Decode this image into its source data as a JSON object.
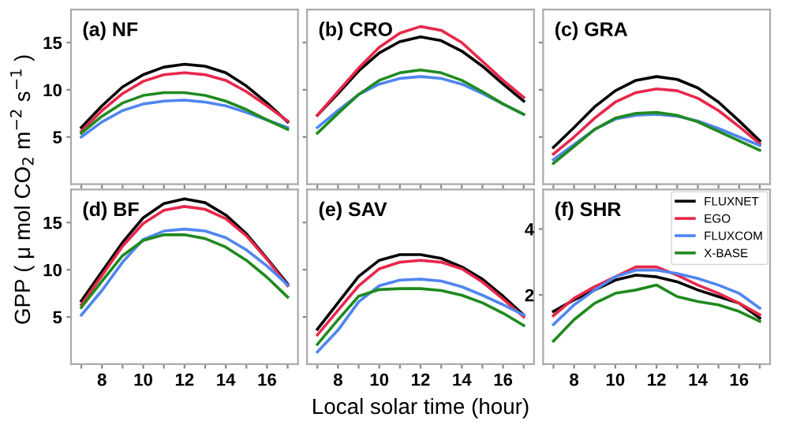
{
  "chart_data": [
    {
      "type": "line",
      "title": "(a) NF",
      "x": [
        7,
        8,
        9,
        10,
        11,
        12,
        13,
        14,
        15,
        16,
        17
      ],
      "xlim": [
        6.5,
        17.5
      ],
      "ylim": [
        0,
        18.5
      ],
      "xticks": [
        {
          "value": 7,
          "label": null
        },
        8,
        {
          "value": 9,
          "label": null
        },
        10,
        {
          "value": 11,
          "label": null
        },
        12,
        {
          "value": 13,
          "label": null
        },
        14,
        {
          "value": 15,
          "label": null
        },
        16,
        {
          "value": 17,
          "label": null
        }
      ],
      "yticks": [
        5,
        10,
        15
      ],
      "tick_labels": "y",
      "grid": false,
      "legend": false,
      "series": [
        {
          "color": "#000000",
          "values": [
            6.0,
            8.3,
            10.3,
            11.6,
            12.4,
            12.7,
            12.5,
            11.8,
            10.4,
            8.6,
            6.6
          ]
        },
        {
          "color": "#e8274b",
          "values": [
            5.6,
            7.8,
            9.6,
            10.9,
            11.6,
            11.8,
            11.6,
            11.0,
            9.8,
            8.3,
            6.7
          ]
        },
        {
          "color": "#4f86f0",
          "values": [
            5.0,
            6.6,
            7.8,
            8.5,
            8.8,
            8.9,
            8.7,
            8.3,
            7.6,
            6.8,
            6.0
          ]
        },
        {
          "color": "#1f8a1f",
          "values": [
            5.4,
            7.2,
            8.6,
            9.4,
            9.7,
            9.7,
            9.4,
            8.8,
            7.9,
            6.8,
            5.8
          ]
        }
      ]
    },
    {
      "type": "line",
      "title": "(b) CRO",
      "x": [
        7,
        8,
        9,
        10,
        11,
        12,
        13,
        14,
        15,
        16,
        17
      ],
      "xlim": [
        6.5,
        17.5
      ],
      "ylim": [
        0,
        18.5
      ],
      "xticks": [
        {
          "value": 7,
          "label": null
        },
        8,
        {
          "value": 9,
          "label": null
        },
        10,
        {
          "value": 11,
          "label": null
        },
        12,
        {
          "value": 13,
          "label": null
        },
        14,
        {
          "value": 15,
          "label": null
        },
        16,
        {
          "value": 17,
          "label": null
        }
      ],
      "yticks": [
        5,
        10,
        15
      ],
      "tick_labels": false,
      "grid": false,
      "legend": false,
      "series": [
        {
          "color": "#000000",
          "values": [
            7.3,
            9.6,
            12.0,
            13.9,
            15.1,
            15.6,
            15.2,
            14.1,
            12.5,
            10.6,
            8.8
          ]
        },
        {
          "color": "#e8274b",
          "values": [
            7.3,
            9.8,
            12.3,
            14.5,
            16.0,
            16.7,
            16.3,
            15.0,
            13.0,
            11.0,
            9.2
          ]
        },
        {
          "color": "#4f86f0",
          "values": [
            6.0,
            7.8,
            9.5,
            10.6,
            11.2,
            11.4,
            11.2,
            10.6,
            9.6,
            8.5,
            7.4
          ]
        },
        {
          "color": "#1f8a1f",
          "values": [
            5.4,
            7.5,
            9.5,
            11.0,
            11.8,
            12.1,
            11.8,
            11.0,
            9.8,
            8.5,
            7.4
          ]
        }
      ]
    },
    {
      "type": "line",
      "title": "(c) GRA",
      "x": [
        7,
        8,
        9,
        10,
        11,
        12,
        13,
        14,
        15,
        16,
        17
      ],
      "xlim": [
        6.5,
        17.5
      ],
      "ylim": [
        0,
        18.5
      ],
      "xticks": [
        {
          "value": 7,
          "label": null
        },
        8,
        {
          "value": 9,
          "label": null
        },
        10,
        {
          "value": 11,
          "label": null
        },
        12,
        {
          "value": 13,
          "label": null
        },
        14,
        {
          "value": 15,
          "label": null
        },
        16,
        {
          "value": 17,
          "label": null
        }
      ],
      "yticks": [
        5,
        10,
        15
      ],
      "tick_labels": false,
      "grid": false,
      "legend": false,
      "series": [
        {
          "color": "#000000",
          "values": [
            3.9,
            6.0,
            8.2,
            9.9,
            11.0,
            11.4,
            11.1,
            10.2,
            8.7,
            6.7,
            4.6
          ]
        },
        {
          "color": "#e8274b",
          "values": [
            3.2,
            5.0,
            7.0,
            8.7,
            9.7,
            10.1,
            9.9,
            9.1,
            7.8,
            6.1,
            4.3
          ]
        },
        {
          "color": "#4f86f0",
          "values": [
            2.6,
            4.2,
            5.8,
            6.9,
            7.3,
            7.4,
            7.2,
            6.7,
            5.9,
            5.0,
            4.1
          ]
        },
        {
          "color": "#1f8a1f",
          "values": [
            2.2,
            4.0,
            5.8,
            7.0,
            7.5,
            7.6,
            7.3,
            6.6,
            5.6,
            4.6,
            3.6
          ]
        }
      ]
    },
    {
      "type": "line",
      "title": "(d) BF",
      "ylabel": "GPP ( μ mol CO$_{2}$ m$^{−2}$ s$^{−1}$ )",
      "x": [
        7,
        8,
        9,
        10,
        11,
        12,
        13,
        14,
        15,
        16,
        17
      ],
      "xlim": [
        6.5,
        17.5
      ],
      "ylim": [
        0,
        18.5
      ],
      "xticks": [
        {
          "value": 7,
          "label": null
        },
        8,
        {
          "value": 9,
          "label": null
        },
        10,
        {
          "value": 11,
          "label": null
        },
        12,
        {
          "value": 13,
          "label": null
        },
        14,
        {
          "value": 15,
          "label": null
        },
        16,
        {
          "value": 17,
          "label": null
        }
      ],
      "yticks": [
        5,
        10,
        15
      ],
      "grid": false,
      "legend": false,
      "series": [
        {
          "color": "#000000",
          "values": [
            6.7,
            9.8,
            12.9,
            15.5,
            17.0,
            17.5,
            17.1,
            15.8,
            13.8,
            11.2,
            8.5
          ]
        },
        {
          "color": "#e8274b",
          "values": [
            6.3,
            9.4,
            12.5,
            14.9,
            16.3,
            16.7,
            16.4,
            15.4,
            13.6,
            11.1,
            8.3
          ]
        },
        {
          "color": "#4f86f0",
          "values": [
            5.2,
            7.8,
            10.8,
            13.2,
            14.1,
            14.3,
            14.1,
            13.4,
            12.1,
            10.4,
            8.4
          ]
        },
        {
          "color": "#1f8a1f",
          "values": [
            6.0,
            8.8,
            11.5,
            13.1,
            13.7,
            13.7,
            13.3,
            12.4,
            11.0,
            9.2,
            7.1
          ]
        }
      ]
    },
    {
      "type": "line",
      "title": "(e) SAV",
      "xlabel": "Local solar time (hour)",
      "x": [
        7,
        8,
        9,
        10,
        11,
        12,
        13,
        14,
        15,
        16,
        17
      ],
      "xlim": [
        6.5,
        17.5
      ],
      "ylim": [
        0,
        18.5
      ],
      "xticks": [
        {
          "value": 7,
          "label": null
        },
        8,
        {
          "value": 9,
          "label": null
        },
        10,
        {
          "value": 11,
          "label": null
        },
        12,
        {
          "value": 13,
          "label": null
        },
        14,
        {
          "value": 15,
          "label": null
        },
        16,
        {
          "value": 17,
          "label": null
        }
      ],
      "yticks": [
        5,
        10,
        15
      ],
      "tick_labels": "x",
      "grid": false,
      "legend": false,
      "series": [
        {
          "color": "#000000",
          "values": [
            3.7,
            6.5,
            9.3,
            11.0,
            11.6,
            11.6,
            11.2,
            10.3,
            9.0,
            7.2,
            5.2
          ]
        },
        {
          "color": "#e8274b",
          "values": [
            3.1,
            5.7,
            8.3,
            10.1,
            10.8,
            11.0,
            10.8,
            10.1,
            8.7,
            6.9,
            5.0
          ]
        },
        {
          "color": "#4f86f0",
          "values": [
            1.3,
            3.6,
            6.6,
            8.3,
            8.9,
            9.0,
            8.8,
            8.2,
            7.3,
            6.3,
            5.2
          ]
        },
        {
          "color": "#1f8a1f",
          "values": [
            2.1,
            4.7,
            7.2,
            7.9,
            8.0,
            8.0,
            7.8,
            7.3,
            6.5,
            5.4,
            4.1
          ]
        }
      ]
    },
    {
      "type": "line",
      "title": "(f) SHR",
      "x": [
        7,
        8,
        9,
        10,
        11,
        12,
        13,
        14,
        15,
        16,
        17
      ],
      "xlim": [
        6.5,
        17.5
      ],
      "ylim": [
        -0.1,
        5.2
      ],
      "xticks": [
        {
          "value": 7,
          "label": null
        },
        8,
        {
          "value": 9,
          "label": null
        },
        10,
        {
          "value": 11,
          "label": null
        },
        12,
        {
          "value": 13,
          "label": null
        },
        14,
        {
          "value": 15,
          "label": null
        },
        16,
        {
          "value": 17,
          "label": null
        }
      ],
      "yticks": [
        2,
        4
      ],
      "grid": false,
      "legend": "top right",
      "series": [
        {
          "name": "FLUXNET",
          "color": "#000000",
          "values": [
            1.5,
            1.85,
            2.15,
            2.45,
            2.6,
            2.55,
            2.4,
            2.15,
            1.95,
            1.75,
            1.3
          ]
        },
        {
          "name": "EGO",
          "color": "#e8274b",
          "values": [
            1.37,
            1.9,
            2.25,
            2.55,
            2.85,
            2.85,
            2.6,
            2.3,
            2.05,
            1.75,
            1.4
          ]
        },
        {
          "name": "FLUXCOM",
          "color": "#4f86f0",
          "values": [
            1.1,
            1.7,
            2.15,
            2.55,
            2.75,
            2.75,
            2.65,
            2.5,
            2.3,
            2.05,
            1.6
          ]
        },
        {
          "name": "X-BASE",
          "color": "#1f8a1f",
          "values": [
            0.6,
            1.25,
            1.75,
            2.05,
            2.15,
            2.3,
            1.95,
            1.8,
            1.7,
            1.5,
            1.2
          ]
        }
      ]
    }
  ]
}
